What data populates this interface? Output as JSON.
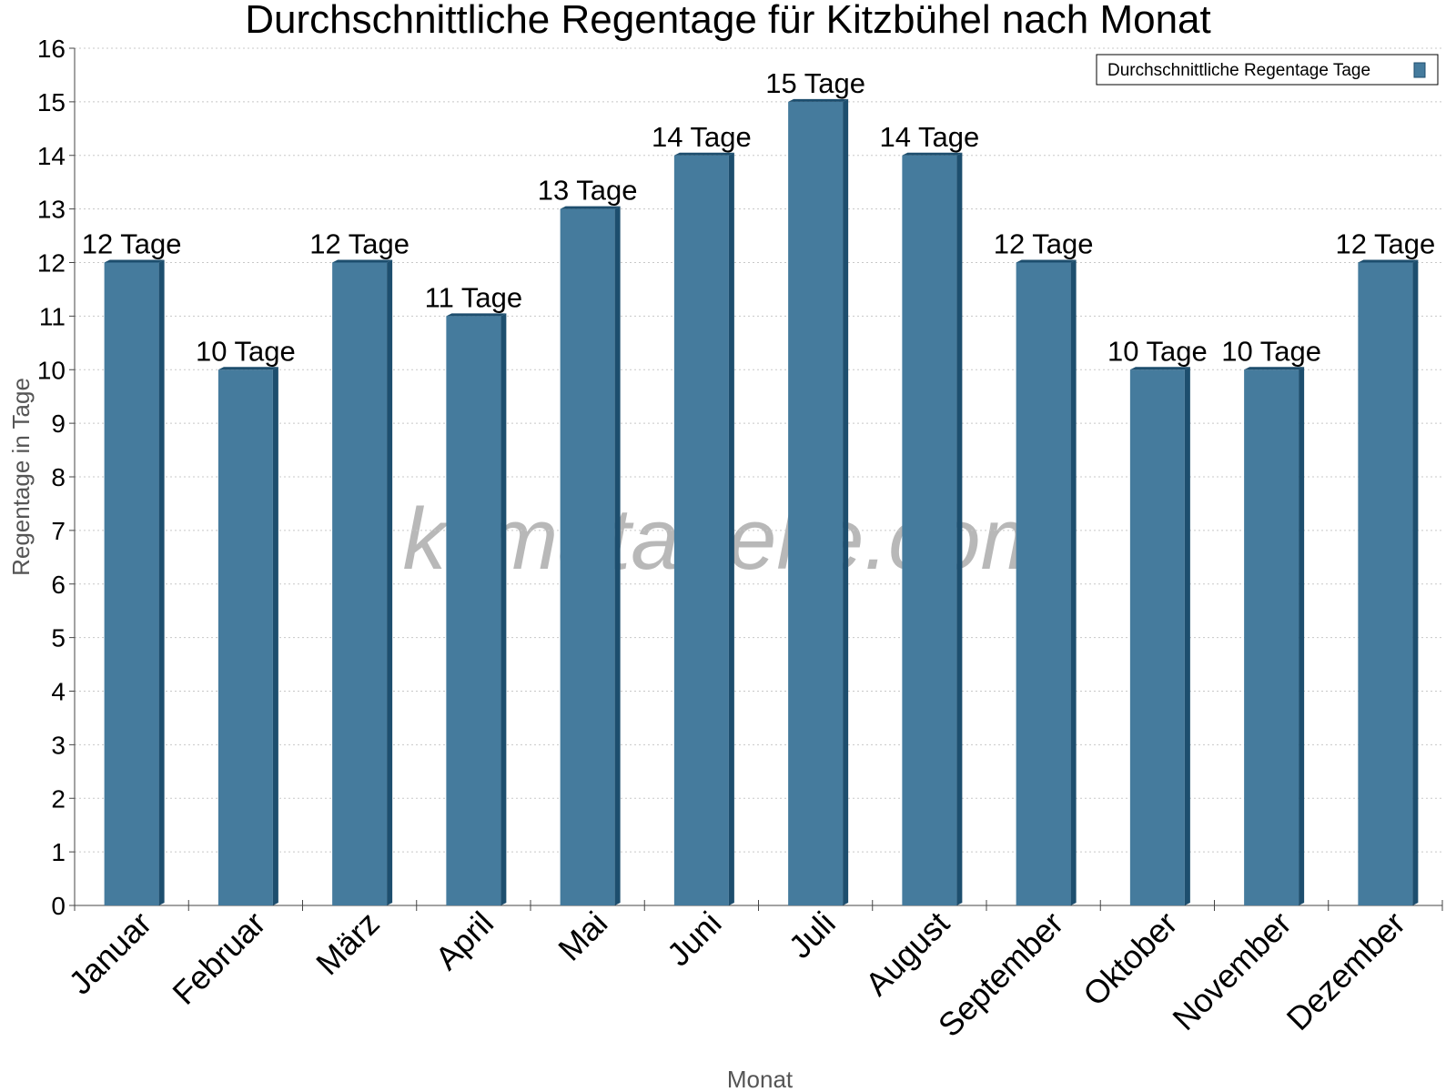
{
  "chart_data": {
    "type": "bar",
    "title": "Durchschnittliche Regentage für Kitzbühel nach Monat",
    "x_label": "Monat",
    "y_label": "Regentage in Tage",
    "watermark": "klimatabelle.com",
    "categories": [
      "Januar",
      "Februar",
      "März",
      "April",
      "Mai",
      "Juni",
      "Juli",
      "August",
      "September",
      "Oktober",
      "November",
      "Dezember"
    ],
    "series": [
      {
        "name": "Durchschnittliche Regentage Tage",
        "color": "#457b9d",
        "values": [
          12,
          10,
          12,
          11,
          13,
          14,
          15,
          14,
          12,
          10,
          10,
          12
        ],
        "value_labels": [
          "12 Tage",
          "10 Tage",
          "12 Tage",
          "11 Tage",
          "13 Tage",
          "14 Tage",
          "15 Tage",
          "14 Tage",
          "12 Tage",
          "10 Tage",
          "10 Tage",
          "12 Tage"
        ]
      }
    ],
    "ylim": [
      0,
      16
    ],
    "yticks": [
      0,
      1,
      2,
      3,
      4,
      5,
      6,
      7,
      8,
      9,
      10,
      11,
      12,
      13,
      14,
      15,
      16
    ],
    "grid": true,
    "legend": "top-right"
  }
}
